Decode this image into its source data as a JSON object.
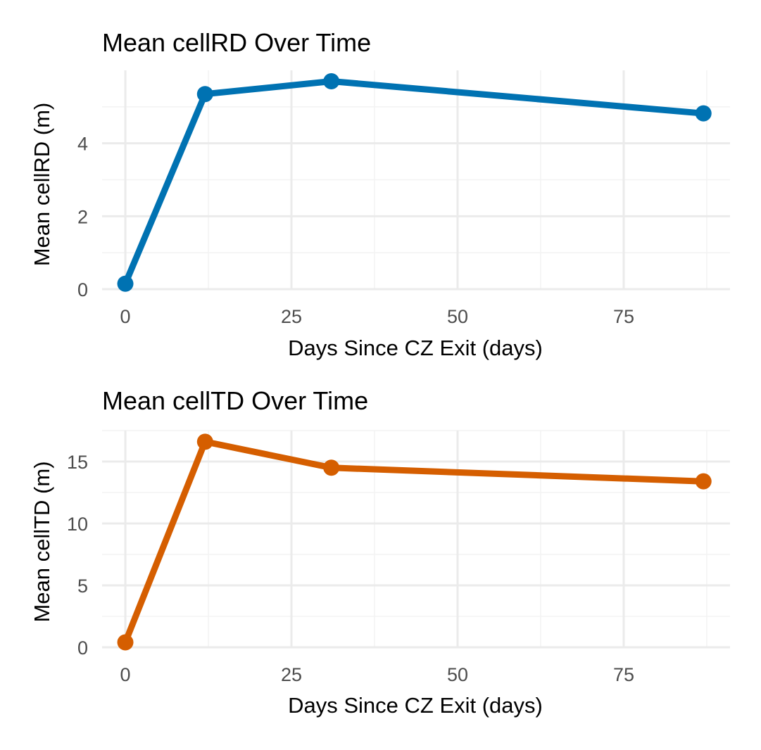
{
  "colors": {
    "rd": "#0072B2",
    "td": "#D55E00",
    "grid": "#ebebeb",
    "tick_text": "#4d4d4d"
  },
  "chart_data": [
    {
      "type": "line",
      "title": "Mean cellRD Over Time",
      "xlabel": "Days Since CZ Exit (days)",
      "ylabel": "Mean cellRD (m)",
      "x": [
        0,
        12,
        31,
        87
      ],
      "values": [
        0.15,
        5.35,
        5.7,
        4.82
      ],
      "xlim": [
        -3.5,
        91
      ],
      "ylim": [
        0,
        6.0
      ],
      "xticks": [
        0,
        25,
        50,
        75
      ],
      "xtick_labels": [
        "0",
        "25",
        "50",
        "75"
      ],
      "yticks": [
        0,
        2,
        4
      ],
      "ytick_labels": [
        "0",
        "2",
        "4"
      ],
      "color": "#0072B2",
      "grid": true,
      "legend": "none"
    },
    {
      "type": "line",
      "title": "Mean cellTD Over Time",
      "xlabel": "Days Since CZ Exit (days)",
      "ylabel": "Mean cellTD (m)",
      "x": [
        0,
        12,
        31,
        87
      ],
      "values": [
        0.4,
        16.6,
        14.5,
        13.4
      ],
      "xlim": [
        -3.5,
        91
      ],
      "ylim": [
        0,
        17.5
      ],
      "xticks": [
        0,
        25,
        50,
        75
      ],
      "xtick_labels": [
        "0",
        "25",
        "50",
        "75"
      ],
      "yticks": [
        0,
        5,
        10,
        15
      ],
      "ytick_labels": [
        "0",
        "5",
        "10",
        "15"
      ],
      "color": "#D55E00",
      "grid": true,
      "legend": "none"
    }
  ]
}
